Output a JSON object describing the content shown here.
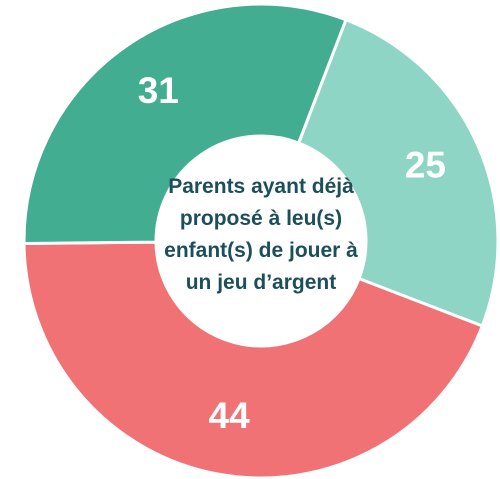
{
  "chart_data": {
    "type": "donut",
    "title": "Parents ayant déjà proposé à leu(s) enfant(s) de jouer à un jeu d’argent",
    "values": [
      25,
      44,
      31
    ],
    "colors": [
      "#8fd5c6",
      "#f07275",
      "#43ad92"
    ]
  }
}
